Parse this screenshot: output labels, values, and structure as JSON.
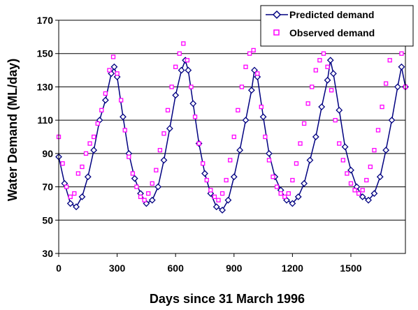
{
  "chart_data": {
    "type": "scatter",
    "title": "",
    "xlabel": "Days since 31 March 1996",
    "ylabel": "Water Demand (ML/day)",
    "xlim": [
      0,
      1780
    ],
    "ylim": [
      30,
      170
    ],
    "x_ticks": [
      0,
      300,
      600,
      900,
      1200,
      1500
    ],
    "y_ticks": [
      30,
      50,
      70,
      90,
      110,
      130,
      150,
      170
    ],
    "grid": "horizontal",
    "legend_position": "top-right",
    "series": [
      {
        "name": "Predicted demand",
        "style": "line-with-diamond-markers",
        "color": "#000080",
        "x": [
          0,
          30,
          60,
          90,
          120,
          150,
          180,
          210,
          240,
          270,
          285,
          300,
          330,
          360,
          390,
          420,
          450,
          480,
          510,
          540,
          570,
          600,
          630,
          650,
          665,
          690,
          720,
          750,
          780,
          810,
          840,
          870,
          900,
          930,
          960,
          990,
          1005,
          1020,
          1050,
          1080,
          1110,
          1140,
          1170,
          1200,
          1230,
          1260,
          1290,
          1320,
          1350,
          1380,
          1395,
          1410,
          1440,
          1470,
          1500,
          1530,
          1560,
          1590,
          1620,
          1650,
          1680,
          1710,
          1740,
          1760,
          1780
        ],
        "y": [
          88,
          72,
          60,
          58,
          64,
          76,
          92,
          110,
          122,
          138,
          142,
          136,
          112,
          90,
          75,
          66,
          60,
          62,
          70,
          86,
          105,
          125,
          140,
          146,
          140,
          120,
          96,
          78,
          66,
          58,
          56,
          62,
          76,
          92,
          110,
          128,
          140,
          136,
          112,
          90,
          76,
          68,
          62,
          60,
          64,
          72,
          86,
          100,
          118,
          134,
          146,
          138,
          116,
          94,
          80,
          70,
          64,
          62,
          66,
          76,
          92,
          110,
          130,
          142,
          130
        ]
      },
      {
        "name": "Observed demand",
        "style": "square-markers",
        "color": "#ff00ff",
        "x": [
          0,
          20,
          40,
          60,
          80,
          100,
          120,
          140,
          160,
          180,
          200,
          220,
          240,
          260,
          280,
          300,
          320,
          340,
          360,
          380,
          400,
          420,
          440,
          460,
          480,
          500,
          520,
          540,
          560,
          580,
          600,
          620,
          640,
          660,
          680,
          700,
          720,
          740,
          760,
          780,
          800,
          820,
          840,
          860,
          880,
          900,
          920,
          940,
          960,
          980,
          1000,
          1020,
          1040,
          1060,
          1080,
          1100,
          1120,
          1140,
          1160,
          1180,
          1200,
          1220,
          1240,
          1260,
          1280,
          1300,
          1320,
          1340,
          1360,
          1380,
          1400,
          1420,
          1440,
          1460,
          1480,
          1500,
          1520,
          1540,
          1560,
          1580,
          1600,
          1620,
          1640,
          1660,
          1680,
          1700,
          1720,
          1740,
          1760,
          1780
        ],
        "y": [
          100,
          84,
          70,
          64,
          66,
          78,
          82,
          90,
          96,
          100,
          108,
          116,
          126,
          140,
          148,
          138,
          122,
          104,
          88,
          78,
          70,
          64,
          62,
          66,
          72,
          80,
          92,
          102,
          116,
          130,
          142,
          150,
          156,
          146,
          130,
          112,
          96,
          84,
          74,
          68,
          64,
          62,
          66,
          74,
          86,
          100,
          116,
          130,
          142,
          150,
          152,
          138,
          118,
          100,
          86,
          76,
          70,
          66,
          64,
          66,
          74,
          84,
          96,
          108,
          120,
          130,
          140,
          146,
          150,
          142,
          128,
          110,
          96,
          86,
          78,
          72,
          68,
          66,
          68,
          74,
          82,
          92,
          104,
          118,
          132,
          146,
          160,
          168,
          150,
          130
        ]
      }
    ]
  }
}
